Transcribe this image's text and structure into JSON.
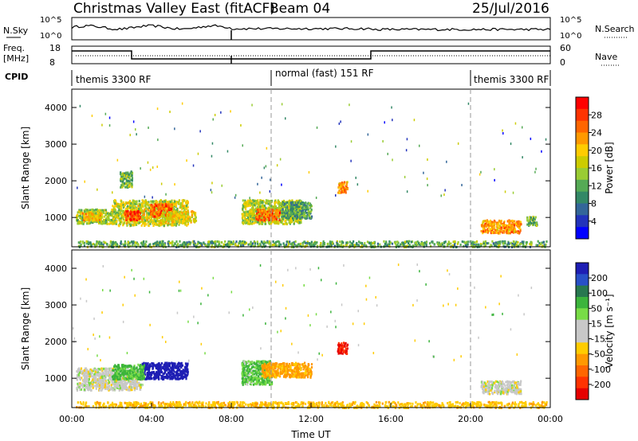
{
  "header": {
    "station": "Christmas Valley East (fitACF)",
    "beam": "Beam 04",
    "date": "25/Jul/2016"
  },
  "top_panels": {
    "nsky_label": "N.Sky",
    "nsky_ticks": [
      "10^5",
      "10^0"
    ],
    "nsearch_label": "N.Search",
    "nsearch_ticks": [
      "10^5",
      "10^0"
    ],
    "freq_label": "Freq.",
    "freq_unit": "[MHz]",
    "freq_ticks": [
      "18",
      "8"
    ],
    "nave_label": "Nave",
    "nave_ticks": [
      "60",
      "0"
    ],
    "cpid_label": "CPID",
    "cpid_segments": [
      {
        "name": "themis 3300 RF",
        "start": 0,
        "end": 10
      },
      {
        "name": "normal (fast) 151 RF",
        "start": 10,
        "end": 20
      },
      {
        "name": "themis 3300 RF",
        "start": 20,
        "end": 24
      }
    ]
  },
  "power_colorbar": {
    "label": "Power [dB]",
    "ticks": [
      "28",
      "24",
      "20",
      "16",
      "12",
      "8",
      "4"
    ],
    "colors": [
      "#ff0000",
      "#ff3300",
      "#ff6600",
      "#ff9900",
      "#ffcc00",
      "#cccc00",
      "#99cc33",
      "#55aa55",
      "#338866",
      "#336699",
      "#2233bb",
      "#0000ff"
    ]
  },
  "velocity_colorbar": {
    "label": "Velocity [m s⁻¹]",
    "ticks": [
      "200",
      "100",
      "50",
      "15",
      "-15",
      "-50",
      "-100",
      "-200"
    ],
    "colors": [
      "#1e1eb4",
      "#2850c8",
      "#287850",
      "#3cb43c",
      "#78dc46",
      "#c8c8c8",
      "#c8c8c8",
      "#ffcc00",
      "#ff9900",
      "#ff6600",
      "#ff3300",
      "#e60000"
    ]
  },
  "chart_data": [
    {
      "type": "heatmap",
      "name": "power",
      "ylabel": "Slant Range [km]",
      "xlim": [
        0,
        24
      ],
      "ylim": [
        200,
        4500
      ],
      "yticks": [
        1000,
        2000,
        3000,
        4000
      ],
      "regions": [
        {
          "t0": 0.2,
          "t1": 2.2,
          "r0": 850,
          "r1": 1250,
          "value": 14
        },
        {
          "t0": 0.5,
          "t1": 1.5,
          "r0": 950,
          "r1": 1150,
          "value": 20
        },
        {
          "t0": 2.0,
          "t1": 5.8,
          "r0": 800,
          "r1": 1500,
          "value": 16
        },
        {
          "t0": 2.6,
          "t1": 3.4,
          "r0": 950,
          "r1": 1200,
          "value": 27
        },
        {
          "t0": 3.9,
          "t1": 5.0,
          "r0": 1050,
          "r1": 1400,
          "value": 26
        },
        {
          "t0": 4.5,
          "t1": 6.2,
          "r0": 900,
          "r1": 1200,
          "value": 18
        },
        {
          "t0": 2.4,
          "t1": 3.0,
          "r0": 1850,
          "r1": 2300,
          "value": 12
        },
        {
          "t0": 8.5,
          "t1": 11.5,
          "r0": 850,
          "r1": 1500,
          "value": 15
        },
        {
          "t0": 9.2,
          "t1": 10.4,
          "r0": 950,
          "r1": 1250,
          "value": 24
        },
        {
          "t0": 10.5,
          "t1": 12.0,
          "r0": 1000,
          "r1": 1450,
          "value": 10
        },
        {
          "t0": 13.3,
          "t1": 13.8,
          "r0": 1700,
          "r1": 2000,
          "value": 22
        },
        {
          "t0": 20.5,
          "t1": 22.5,
          "r0": 600,
          "r1": 950,
          "value": 22
        },
        {
          "t0": 22.8,
          "t1": 23.3,
          "r0": 800,
          "r1": 1050,
          "value": 12
        },
        {
          "t0": 0.2,
          "t1": 23.8,
          "r0": 220,
          "r1": 380,
          "value": 11
        }
      ]
    },
    {
      "type": "heatmap",
      "name": "velocity",
      "ylabel": "Slant Range [km]",
      "xlabel": "Time UT",
      "xlim": [
        0,
        24
      ],
      "ylim": [
        200,
        4500
      ],
      "yticks": [
        1000,
        2000,
        3000,
        4000
      ],
      "xticks": [
        "00:00",
        "04:00",
        "08:00",
        "12:00",
        "16:00",
        "20:00",
        "00:00"
      ],
      "regions": [
        {
          "t0": 0.2,
          "t1": 3.5,
          "r0": 700,
          "r1": 1300,
          "value": 0
        },
        {
          "t0": 3.5,
          "t1": 5.8,
          "r0": 1000,
          "r1": 1450,
          "value": 180
        },
        {
          "t0": 2.0,
          "t1": 3.6,
          "r0": 1000,
          "r1": 1400,
          "value": 40
        },
        {
          "t0": 8.5,
          "t1": 10.0,
          "r0": 850,
          "r1": 1500,
          "value": 30
        },
        {
          "t0": 9.5,
          "t1": 12.0,
          "r0": 1050,
          "r1": 1450,
          "value": -60
        },
        {
          "t0": 13.3,
          "t1": 13.8,
          "r0": 1700,
          "r1": 2000,
          "value": -150
        },
        {
          "t0": 20.5,
          "t1": 22.5,
          "r0": 600,
          "r1": 950,
          "value": 0
        },
        {
          "t0": 0.2,
          "t1": 23.8,
          "r0": 220,
          "r1": 380,
          "value": -40
        }
      ]
    }
  ]
}
